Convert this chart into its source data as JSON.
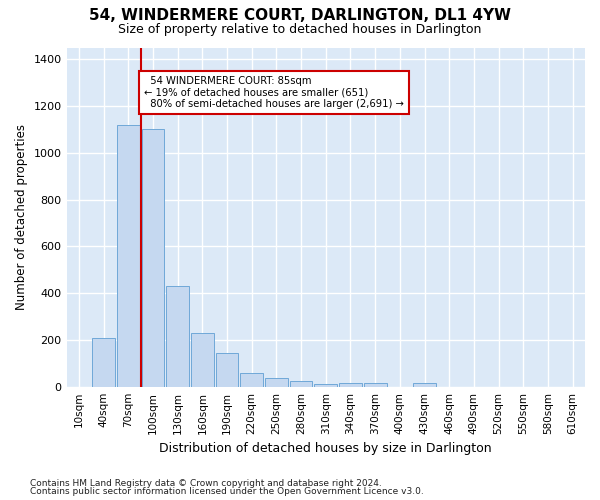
{
  "title": "54, WINDERMERE COURT, DARLINGTON, DL1 4YW",
  "subtitle": "Size of property relative to detached houses in Darlington",
  "xlabel": "Distribution of detached houses by size in Darlington",
  "ylabel": "Number of detached properties",
  "footnote1": "Contains HM Land Registry data © Crown copyright and database right 2024.",
  "footnote2": "Contains public sector information licensed under the Open Government Licence v3.0.",
  "bar_labels": [
    "10sqm",
    "40sqm",
    "70sqm",
    "100sqm",
    "130sqm",
    "160sqm",
    "190sqm",
    "220sqm",
    "250sqm",
    "280sqm",
    "310sqm",
    "340sqm",
    "370sqm",
    "400sqm",
    "430sqm",
    "460sqm",
    "490sqm",
    "520sqm",
    "550sqm",
    "580sqm",
    "610sqm"
  ],
  "bar_values": [
    0,
    210,
    1120,
    1100,
    430,
    230,
    145,
    58,
    38,
    25,
    10,
    18,
    18,
    0,
    15,
    0,
    0,
    0,
    0,
    0,
    0
  ],
  "bar_color": "#c5d8f0",
  "bar_edge_color": "#6fa8d8",
  "bg_color": "#dce9f7",
  "grid_color": "#ffffff",
  "property_label": "54 WINDERMERE COURT: 85sqm",
  "smaller_pct": "19%",
  "smaller_count": "651",
  "larger_pct": "80%",
  "larger_count": "2,691",
  "vline_color": "#cc0000",
  "vline_bin_index": 2,
  "annotation_box_color": "#cc0000",
  "ylim": [
    0,
    1450
  ],
  "yticks": [
    0,
    200,
    400,
    600,
    800,
    1000,
    1200,
    1400
  ]
}
